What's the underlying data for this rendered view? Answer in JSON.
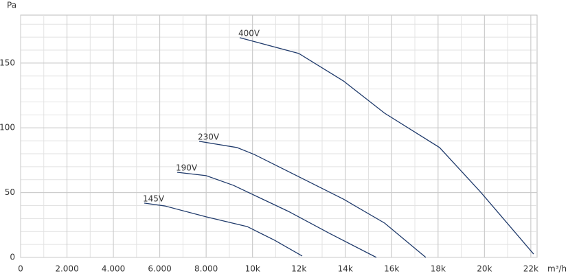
{
  "chart_data": {
    "type": "line",
    "y_label": "Pa",
    "x_label": "m³/h",
    "xlim": [
      0,
      22270
    ],
    "ylim": [
      0,
      187
    ],
    "xticks": [
      0,
      {
        "value": 2000,
        "label": "2.000"
      },
      {
        "value": 4000,
        "label": "4.000"
      },
      {
        "value": 6000,
        "label": "6.000"
      },
      {
        "value": 8000,
        "label": "8.000"
      },
      {
        "value": 10000,
        "label": "10k"
      },
      {
        "value": 12000,
        "label": "12k"
      },
      {
        "value": 14000,
        "label": "14k"
      },
      {
        "value": 16000,
        "label": "16k"
      },
      {
        "value": 18000,
        "label": "18k"
      },
      {
        "value": 20000,
        "label": "20k"
      },
      {
        "value": 22000,
        "label": "22k"
      }
    ],
    "yticks": [
      0,
      50,
      100,
      150
    ],
    "grid": true,
    "minor_grid_step": {
      "x": 1000,
      "y": 10
    },
    "series": [
      {
        "name": "400V",
        "color": "#1f3a6b",
        "x": [
          9446,
          11993,
          13918,
          15695,
          18064,
          19840,
          22120
        ],
        "values": [
          169.6,
          157.4,
          136.2,
          111.3,
          84.8,
          50.3,
          2.6
        ]
      },
      {
        "name": "230V",
        "color": "#1f3a6b",
        "x": [
          7699,
          9328,
          10068,
          11845,
          13918,
          15695,
          17472
        ],
        "values": [
          89.6,
          84.8,
          79.5,
          63.6,
          45,
          26.5,
          0
        ]
      },
      {
        "name": "190V",
        "color": "#1f3a6b",
        "x": [
          6752,
          8000,
          9180,
          11549,
          13325,
          15339
        ],
        "values": [
          65.7,
          63.1,
          55.6,
          35.5,
          18.5,
          0
        ]
      },
      {
        "name": "145V",
        "color": "#1f3a6b",
        "x": [
          5330,
          6219,
          8000,
          9772,
          10956,
          12141
        ],
        "values": [
          41.9,
          39.7,
          31.3,
          23.8,
          13.2,
          1.1
        ]
      }
    ]
  }
}
